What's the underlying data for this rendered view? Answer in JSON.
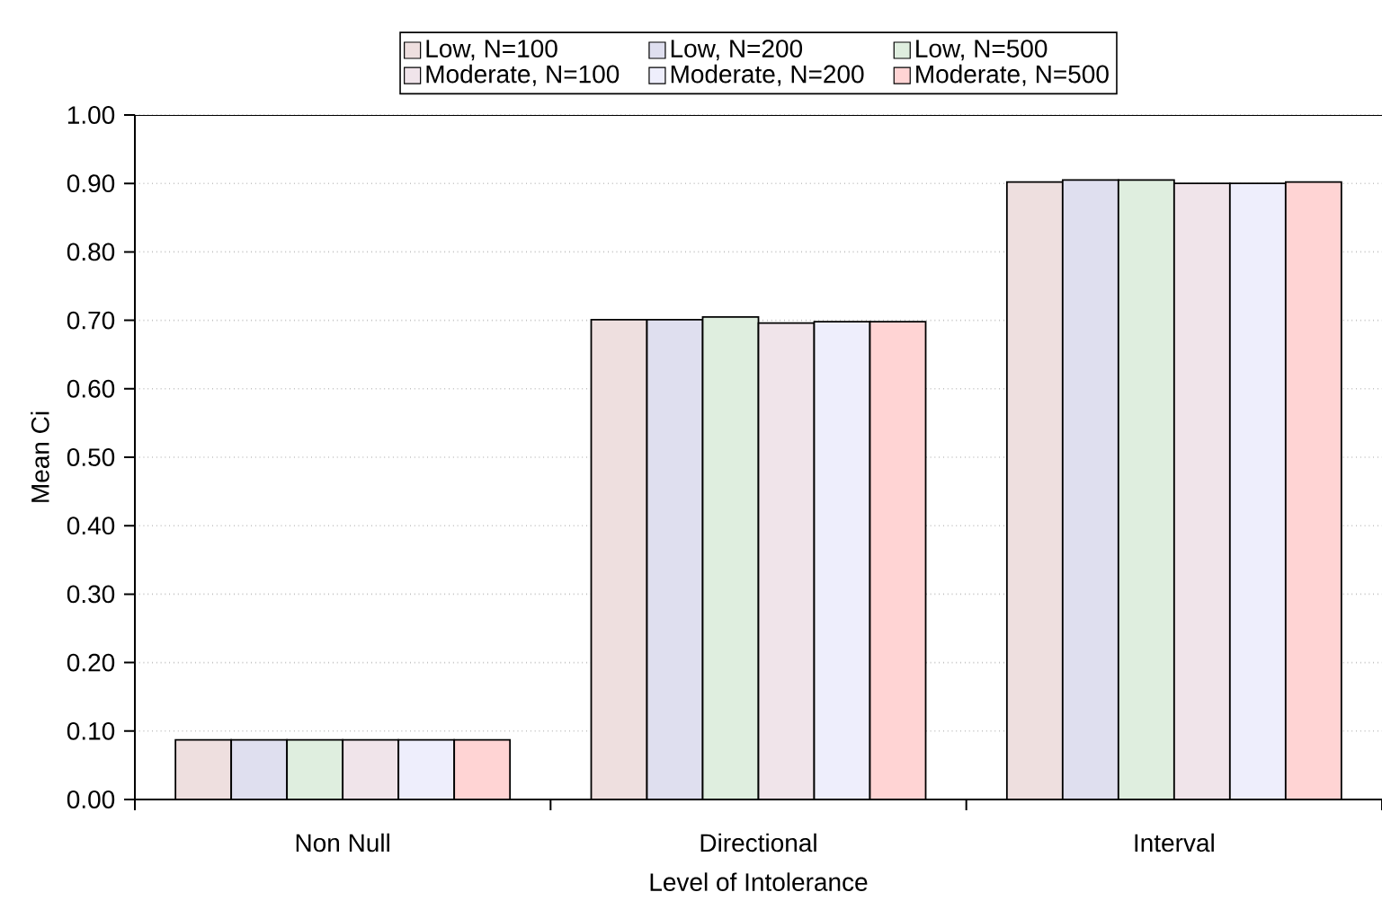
{
  "chart_data": {
    "type": "bar",
    "xlabel": "Level of Intolerance",
    "ylabel": "Mean Ci",
    "categories": [
      "Non Null",
      "Directional",
      "Interval"
    ],
    "series": [
      {
        "name": "Low, N=100",
        "color": "#eedfdf",
        "values": [
          0.087,
          0.701,
          0.902
        ]
      },
      {
        "name": "Low, N=200",
        "color": "#dfdfef",
        "values": [
          0.087,
          0.701,
          0.905
        ]
      },
      {
        "name": "Low, N=500",
        "color": "#dfeedf",
        "values": [
          0.087,
          0.705,
          0.905
        ]
      },
      {
        "name": "Moderate, N=100",
        "color": "#f0e4ea",
        "values": [
          0.087,
          0.696,
          0.9
        ]
      },
      {
        "name": "Moderate, N=200",
        "color": "#eeeefc",
        "values": [
          0.087,
          0.698,
          0.9
        ]
      },
      {
        "name": "Moderate, N=500",
        "color": "#ffd4d4",
        "values": [
          0.087,
          0.698,
          0.902
        ]
      }
    ],
    "ylim": [
      0,
      1
    ],
    "yticks": [
      {
        "value": 0,
        "label": "0.00"
      },
      {
        "value": 0.1,
        "label": "0.10"
      },
      {
        "value": 0.2,
        "label": "0.20"
      },
      {
        "value": 0.3,
        "label": "0.30"
      },
      {
        "value": 0.4,
        "label": "0.40"
      },
      {
        "value": 0.5,
        "label": "0.50"
      },
      {
        "value": 0.6,
        "label": "0.60"
      },
      {
        "value": 0.7,
        "label": "0.70"
      },
      {
        "value": 0.8,
        "label": "0.80"
      },
      {
        "value": 0.9,
        "label": "0.90"
      },
      {
        "value": 1,
        "label": "1.00"
      }
    ],
    "grid": "y",
    "legend": "top"
  }
}
